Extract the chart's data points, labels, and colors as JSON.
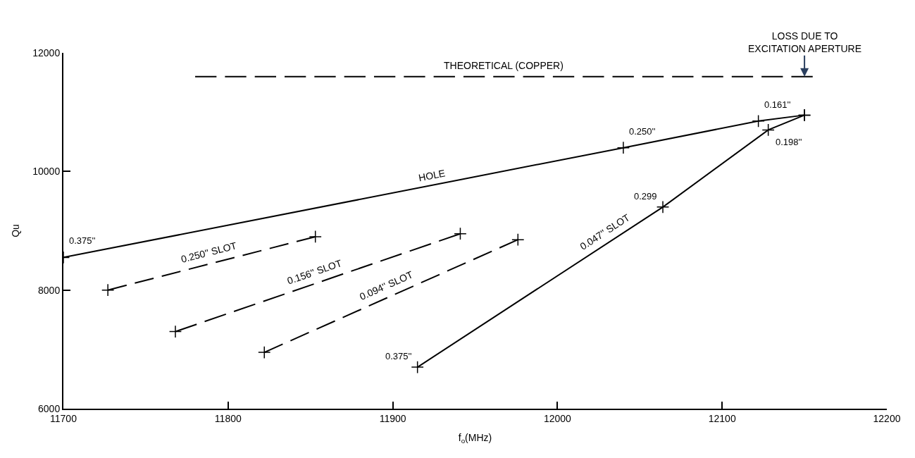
{
  "chart_data": {
    "type": "line",
    "xlabel": "f$_{o}$(MHz)",
    "ylabel": "Qu",
    "xlim": [
      11700,
      12200
    ],
    "xticks": [
      11700,
      11800,
      11900,
      12000,
      12100,
      12200
    ],
    "ylim": [
      6000,
      12000
    ],
    "yticks": [
      6000,
      8000,
      10000,
      12000
    ],
    "grid": false,
    "legend": false,
    "marker": "cross",
    "series": [
      {
        "name": "THEORETICAL (COPPER)",
        "color": "#000000",
        "x": [
          11780,
          12155
        ],
        "values": [
          11600,
          11600
        ],
        "line_style": "dashed",
        "marker": "none"
      },
      {
        "name": "HOLE",
        "color": "#000000",
        "x": [
          11700,
          12040,
          12122,
          12150
        ],
        "values": [
          8550,
          10400,
          10850,
          10950
        ],
        "line_style": "solid"
      },
      {
        "name": "0.250'' SLOT",
        "color": "#000000",
        "x": [
          11727,
          11853
        ],
        "values": [
          8000,
          8900
        ],
        "line_style": "dashed"
      },
      {
        "name": "0.156'' SLOT",
        "color": "#000000",
        "x": [
          11768,
          11941
        ],
        "values": [
          7300,
          8950
        ],
        "line_style": "dashed"
      },
      {
        "name": "0.094'' SLOT",
        "color": "#000000",
        "x": [
          11822,
          11976
        ],
        "values": [
          6950,
          8850
        ],
        "line_style": "dashed"
      },
      {
        "name": "0.047'' SLOT",
        "color": "#000000",
        "x": [
          11915,
          12064,
          12128,
          12150
        ],
        "values": [
          6700,
          9400,
          10700,
          10950
        ],
        "line_style": "solid"
      }
    ],
    "annotations": [
      {
        "text": "0.375''",
        "x": 11700,
        "y": 8550
      },
      {
        "text": "0.250''",
        "x": 12040,
        "y": 10400
      },
      {
        "text": "0.161''",
        "x": 12122,
        "y": 10850
      },
      {
        "text": "0.198''",
        "x": 12128,
        "y": 10700
      },
      {
        "text": "0.299",
        "x": 12064,
        "y": 9400
      },
      {
        "text": "0.375''",
        "x": 11915,
        "y": 6700
      },
      {
        "text": "LOSS DUE TO\nEXCITATION APERTURE",
        "x": 12150,
        "y": 11600
      }
    ]
  }
}
